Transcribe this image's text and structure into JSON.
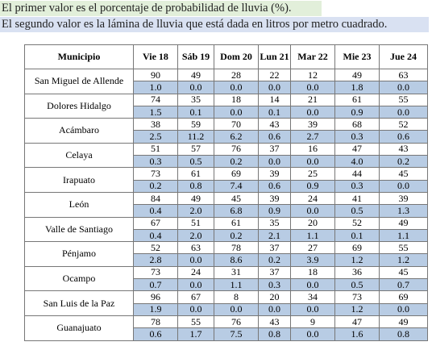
{
  "notes": [
    "El primer valor es el porcentaje de probabilidad de lluvia (%).",
    "El segundo valor es la lámina de lluvia que está dada en litros por metro cuadrado."
  ],
  "table": {
    "header": [
      "Municipio",
      "Vie 18",
      "Sáb 19",
      "Dom 20",
      "Lun 21",
      "Mar 22",
      "Mie 23",
      "Jue 24"
    ],
    "rows": [
      {
        "municipio": "San Miguel de Allende",
        "probabilidad": [
          "90",
          "49",
          "28",
          "22",
          "12",
          "49",
          "63"
        ],
        "lamina": [
          "1.0",
          "0.0",
          "0.0",
          "0.0",
          "0.0",
          "1.8",
          "0.0"
        ]
      },
      {
        "municipio": "Dolores Hidalgo",
        "probabilidad": [
          "74",
          "35",
          "18",
          "14",
          "21",
          "61",
          "55"
        ],
        "lamina": [
          "1.5",
          "0.1",
          "0.0",
          "0.1",
          "0.0",
          "0.9",
          "0.0"
        ]
      },
      {
        "municipio": "Acámbaro",
        "probabilidad": [
          "38",
          "59",
          "70",
          "43",
          "39",
          "68",
          "52"
        ],
        "lamina": [
          "2.5",
          "11.2",
          "6.2",
          "0.6",
          "2.7",
          "0.3",
          "0.6"
        ]
      },
      {
        "municipio": "Celaya",
        "probabilidad": [
          "51",
          "57",
          "76",
          "37",
          "16",
          "47",
          "43"
        ],
        "lamina": [
          "0.3",
          "0.5",
          "0.2",
          "0.0",
          "0.0",
          "4.0",
          "0.2"
        ]
      },
      {
        "municipio": "Irapuato",
        "probabilidad": [
          "73",
          "61",
          "69",
          "39",
          "25",
          "44",
          "45"
        ],
        "lamina": [
          "0.2",
          "0.8",
          "7.4",
          "0.6",
          "0.9",
          "0.3",
          "0.0"
        ]
      },
      {
        "municipio": "León",
        "probabilidad": [
          "84",
          "49",
          "45",
          "39",
          "24",
          "41",
          "39"
        ],
        "lamina": [
          "0.4",
          "2.0",
          "6.8",
          "0.9",
          "0.0",
          "0.5",
          "1.3"
        ]
      },
      {
        "municipio": "Valle de Santiago",
        "probabilidad": [
          "67",
          "51",
          "61",
          "35",
          "20",
          "52",
          "49"
        ],
        "lamina": [
          "0.4",
          "2.0",
          "0.2",
          "2.1",
          "1.1",
          "0.1",
          "1.1"
        ]
      },
      {
        "municipio": "Pénjamo",
        "probabilidad": [
          "52",
          "63",
          "78",
          "37",
          "27",
          "69",
          "55"
        ],
        "lamina": [
          "2.8",
          "0.0",
          "8.6",
          "0.2",
          "3.9",
          "1.2",
          "1.2"
        ]
      },
      {
        "municipio": "Ocampo",
        "probabilidad": [
          "73",
          "24",
          "31",
          "37",
          "18",
          "36",
          "45"
        ],
        "lamina": [
          "0.7",
          "0.0",
          "1.1",
          "0.3",
          "0.0",
          "0.5",
          "0.7"
        ]
      },
      {
        "municipio": "San Luis de la Paz",
        "probabilidad": [
          "96",
          "67",
          "8",
          "20",
          "34",
          "73",
          "69"
        ],
        "lamina": [
          "1.9",
          "0.0",
          "0.0",
          "0.0",
          "0.0",
          "1.2",
          "0.0"
        ]
      },
      {
        "municipio": "Guanajuato",
        "probabilidad": [
          "78",
          "55",
          "76",
          "43",
          "9",
          "47",
          "49"
        ],
        "lamina": [
          "0.6",
          "1.7",
          "7.5",
          "0.8",
          "0.0",
          "1.6",
          "0.8"
        ]
      }
    ]
  }
}
